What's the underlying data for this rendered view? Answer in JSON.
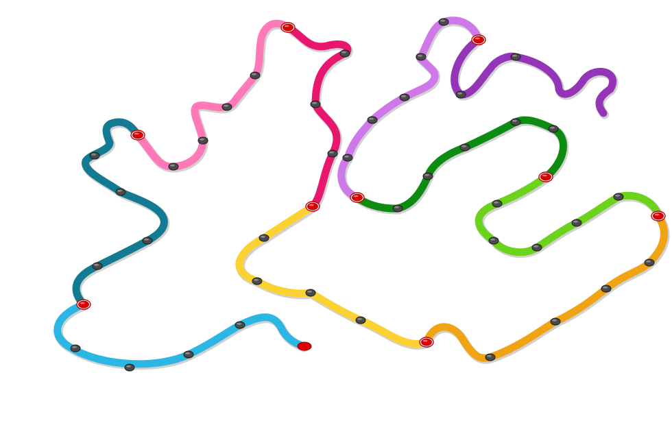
{
  "board": {
    "segments": [
      {
        "name": "light-blue-path",
        "color": "#2bb6e4"
      },
      {
        "name": "teal-path",
        "color": "#137a93"
      },
      {
        "name": "pink-path",
        "color": "#ff78b8"
      },
      {
        "name": "magenta-path",
        "color": "#e8166e"
      },
      {
        "name": "yellow-path",
        "color": "#fcd232"
      },
      {
        "name": "orange-path",
        "color": "#f0a313"
      },
      {
        "name": "lime-path",
        "color": "#6cd31c"
      },
      {
        "name": "green-path",
        "color": "#0e8c12"
      },
      {
        "name": "lavender-path",
        "color": "#cf78ea"
      },
      {
        "name": "purple-path",
        "color": "#9335b6"
      }
    ],
    "node_types": [
      "grey-waypoint",
      "red-checkpoint",
      "red-end-point"
    ]
  }
}
